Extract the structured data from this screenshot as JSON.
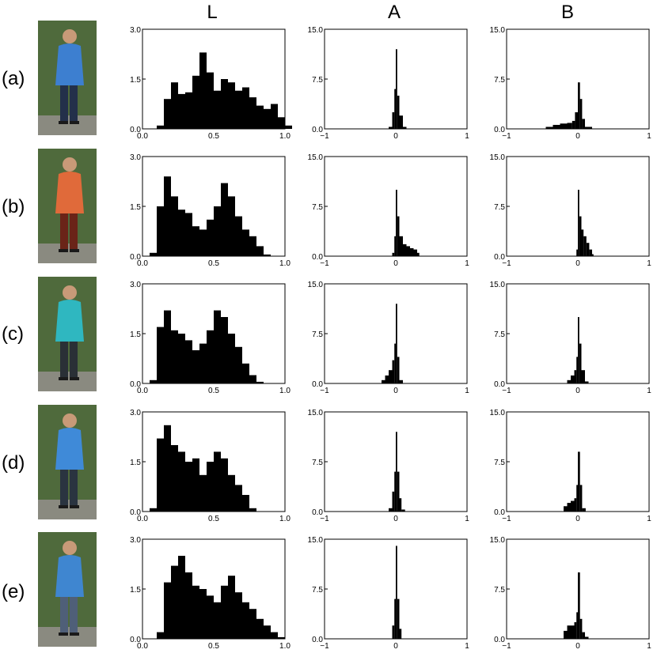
{
  "column_headers": [
    "L",
    "A",
    "B"
  ],
  "colors": {
    "bars": "#000000",
    "shirt_a": "#3d7fd0",
    "shirt_b": "#e06a3a",
    "shirt_c": "#2fb7c0",
    "shirt_d": "#3f8ad8",
    "shirt_e": "#3f86d0",
    "foliage": "#4f6a3c",
    "pants_a": "#23304a",
    "pants_b": "#6a2418",
    "pants_c": "#2a3036",
    "pants_d": "#2a3440",
    "pants_e": "#4f5f78"
  },
  "rows": [
    {
      "label": "(a)",
      "thumbnail_icon": "person-blue-shirt-icon"
    },
    {
      "label": "(b)",
      "thumbnail_icon": "person-orange-shirt-icon"
    },
    {
      "label": "(c)",
      "thumbnail_icon": "person-cyan-shirt-icon"
    },
    {
      "label": "(d)",
      "thumbnail_icon": "person-blue-shirt-icon"
    },
    {
      "label": "(e)",
      "thumbnail_icon": "person-blue-shirt-icon"
    }
  ],
  "chart_data": [
    {
      "type": "bar",
      "channel": "L",
      "row": "(a)",
      "xlim": [
        0,
        1
      ],
      "ylim": [
        0,
        3
      ],
      "xticks": [
        "0.0",
        "0.5",
        "1.0"
      ],
      "yticks": [
        "0.0",
        "1.5",
        "3.0"
      ],
      "x": [
        0.1,
        0.15,
        0.2,
        0.25,
        0.3,
        0.35,
        0.4,
        0.45,
        0.5,
        0.55,
        0.6,
        0.65,
        0.7,
        0.75,
        0.8,
        0.85,
        0.9,
        0.95,
        1.0
      ],
      "values": [
        0.1,
        0.9,
        1.4,
        1.05,
        1.1,
        1.6,
        2.3,
        1.7,
        1.15,
        1.5,
        1.4,
        1.15,
        1.25,
        0.95,
        0.7,
        0.6,
        0.75,
        0.35,
        0.1
      ]
    },
    {
      "type": "bar",
      "channel": "A",
      "row": "(a)",
      "xlim": [
        -1,
        1
      ],
      "ylim": [
        0,
        15
      ],
      "xticks": [
        "−1",
        "0",
        "1"
      ],
      "yticks": [
        "0.0",
        "7.5",
        "15.0"
      ],
      "x": [
        -0.1,
        -0.05,
        -0.02,
        0.0,
        0.02,
        0.05,
        0.1
      ],
      "values": [
        0.3,
        2.5,
        6,
        12,
        5,
        2,
        0.3
      ]
    },
    {
      "type": "bar",
      "channel": "B",
      "row": "(a)",
      "xlim": [
        -1,
        1
      ],
      "ylim": [
        0,
        15
      ],
      "xticks": [
        "−1",
        "0",
        "1"
      ],
      "yticks": [
        "0.0",
        "7.5",
        "15.0"
      ],
      "x": [
        -0.45,
        -0.35,
        -0.25,
        -0.15,
        -0.08,
        -0.04,
        0.0,
        0.03,
        0.06,
        0.1
      ],
      "values": [
        0.3,
        0.6,
        0.8,
        0.9,
        1.2,
        2.5,
        7,
        4.5,
        1.5,
        0.3
      ]
    },
    {
      "type": "bar",
      "channel": "L",
      "row": "(b)",
      "xlim": [
        0,
        1
      ],
      "ylim": [
        0,
        3
      ],
      "xticks": [
        "0.0",
        "0.5",
        "1.0"
      ],
      "yticks": [
        "0.0",
        "1.5",
        "3.0"
      ],
      "x": [
        0.05,
        0.1,
        0.15,
        0.2,
        0.25,
        0.3,
        0.35,
        0.4,
        0.45,
        0.5,
        0.55,
        0.6,
        0.65,
        0.7,
        0.75,
        0.8,
        0.85
      ],
      "values": [
        0.1,
        1.5,
        2.4,
        1.8,
        1.4,
        1.3,
        0.9,
        0.8,
        1.1,
        1.5,
        2.2,
        1.8,
        1.2,
        0.8,
        0.6,
        0.3,
        0.05
      ]
    },
    {
      "type": "bar",
      "channel": "A",
      "row": "(b)",
      "xlim": [
        -1,
        1
      ],
      "ylim": [
        0,
        15
      ],
      "xticks": [
        "−1",
        "0",
        "1"
      ],
      "yticks": [
        "0.0",
        "7.5",
        "15.0"
      ],
      "x": [
        -0.05,
        -0.02,
        0.0,
        0.02,
        0.05,
        0.1,
        0.15,
        0.2,
        0.25,
        0.3
      ],
      "values": [
        0.5,
        3,
        10,
        6,
        3,
        1.8,
        1.5,
        1.2,
        1,
        0.5
      ]
    },
    {
      "type": "bar",
      "channel": "B",
      "row": "(b)",
      "xlim": [
        -1,
        1
      ],
      "ylim": [
        0,
        15
      ],
      "xticks": [
        "−1",
        "0",
        "1"
      ],
      "yticks": [
        "0.0",
        "7.5",
        "15.0"
      ],
      "x": [
        -0.02,
        0.0,
        0.02,
        0.05,
        0.08,
        0.12,
        0.16,
        0.2
      ],
      "values": [
        1,
        10,
        6,
        4,
        3,
        2,
        1,
        0.3
      ]
    },
    {
      "type": "bar",
      "channel": "L",
      "row": "(c)",
      "xlim": [
        0,
        1
      ],
      "ylim": [
        0,
        3
      ],
      "xticks": [
        "0.0",
        "0.5",
        "1.0"
      ],
      "yticks": [
        "0.0",
        "1.5",
        "3.0"
      ],
      "x": [
        0.05,
        0.1,
        0.15,
        0.2,
        0.25,
        0.3,
        0.35,
        0.4,
        0.45,
        0.5,
        0.55,
        0.6,
        0.65,
        0.7,
        0.75,
        0.8
      ],
      "values": [
        0.1,
        1.7,
        2.2,
        1.6,
        1.5,
        1.3,
        1.0,
        1.2,
        1.6,
        2.2,
        2.0,
        1.5,
        1.1,
        0.6,
        0.25,
        0.05
      ]
    },
    {
      "type": "bar",
      "channel": "A",
      "row": "(c)",
      "xlim": [
        -1,
        1
      ],
      "ylim": [
        0,
        15
      ],
      "xticks": [
        "−1",
        "0",
        "1"
      ],
      "yticks": [
        "0.0",
        "7.5",
        "15.0"
      ],
      "x": [
        -0.2,
        -0.15,
        -0.1,
        -0.05,
        -0.02,
        0.0,
        0.02,
        0.05
      ],
      "values": [
        0.5,
        1.2,
        2.0,
        3.5,
        6,
        12,
        4,
        0.5
      ]
    },
    {
      "type": "bar",
      "channel": "B",
      "row": "(c)",
      "xlim": [
        -1,
        1
      ],
      "ylim": [
        0,
        15
      ],
      "xticks": [
        "−1",
        "0",
        "1"
      ],
      "yticks": [
        "0.0",
        "7.5",
        "15.0"
      ],
      "x": [
        -0.15,
        -0.1,
        -0.05,
        -0.02,
        0.0,
        0.02,
        0.05,
        0.1
      ],
      "values": [
        0.5,
        1.2,
        2,
        4,
        10,
        6,
        2,
        0.3
      ]
    },
    {
      "type": "bar",
      "channel": "L",
      "row": "(d)",
      "xlim": [
        0,
        1
      ],
      "ylim": [
        0,
        3
      ],
      "xticks": [
        "0.0",
        "0.5",
        "1.0"
      ],
      "yticks": [
        "0.0",
        "1.5",
        "3.0"
      ],
      "x": [
        0.05,
        0.1,
        0.15,
        0.2,
        0.25,
        0.3,
        0.35,
        0.4,
        0.45,
        0.5,
        0.55,
        0.6,
        0.65,
        0.7,
        0.75
      ],
      "values": [
        0.1,
        2.2,
        2.6,
        2.0,
        1.8,
        1.5,
        1.6,
        1.1,
        1.5,
        1.8,
        1.6,
        1.1,
        0.8,
        0.5,
        0.1
      ]
    },
    {
      "type": "bar",
      "channel": "A",
      "row": "(d)",
      "xlim": [
        -1,
        1
      ],
      "ylim": [
        0,
        15
      ],
      "xticks": [
        "−1",
        "0",
        "1"
      ],
      "yticks": [
        "0.0",
        "7.5",
        "15.0"
      ],
      "x": [
        -0.1,
        -0.05,
        -0.02,
        0.0,
        0.02,
        0.05,
        0.08
      ],
      "values": [
        0.5,
        3,
        6,
        12,
        6,
        2,
        0.3
      ]
    },
    {
      "type": "bar",
      "channel": "B",
      "row": "(d)",
      "xlim": [
        -1,
        1
      ],
      "ylim": [
        0,
        15
      ],
      "xticks": [
        "−1",
        "0",
        "1"
      ],
      "yticks": [
        "0.0",
        "7.5",
        "15.0"
      ],
      "x": [
        -0.2,
        -0.15,
        -0.1,
        -0.05,
        -0.02,
        0.0,
        0.03,
        0.06
      ],
      "values": [
        0.8,
        1.3,
        1.6,
        2,
        4,
        9,
        4,
        0.5
      ]
    },
    {
      "type": "bar",
      "channel": "L",
      "row": "(e)",
      "xlim": [
        0,
        1
      ],
      "ylim": [
        0,
        3
      ],
      "xticks": [
        "0.0",
        "0.5",
        "1.0"
      ],
      "yticks": [
        "0.0",
        "1.5",
        "3.0"
      ],
      "x": [
        0.1,
        0.15,
        0.2,
        0.25,
        0.3,
        0.35,
        0.4,
        0.45,
        0.5,
        0.55,
        0.6,
        0.65,
        0.7,
        0.75,
        0.8,
        0.85,
        0.9,
        0.95
      ],
      "values": [
        0.2,
        1.7,
        2.2,
        2.5,
        2.0,
        1.6,
        1.5,
        1.3,
        1.1,
        1.6,
        1.9,
        1.4,
        1.1,
        0.9,
        0.6,
        0.4,
        0.2,
        0.05
      ]
    },
    {
      "type": "bar",
      "channel": "A",
      "row": "(e)",
      "xlim": [
        -1,
        1
      ],
      "ylim": [
        0,
        15
      ],
      "xticks": [
        "−1",
        "0",
        "1"
      ],
      "yticks": [
        "0.0",
        "7.5",
        "15.0"
      ],
      "x": [
        -0.05,
        -0.02,
        0.0,
        0.02,
        0.05
      ],
      "values": [
        2,
        6,
        14,
        6,
        1.5
      ]
    },
    {
      "type": "bar",
      "channel": "B",
      "row": "(e)",
      "xlim": [
        -1,
        1
      ],
      "ylim": [
        0,
        15
      ],
      "xticks": [
        "−1",
        "0",
        "1"
      ],
      "yticks": [
        "0.0",
        "7.5",
        "15.0"
      ],
      "x": [
        -0.2,
        -0.15,
        -0.1,
        -0.05,
        -0.02,
        0.0,
        0.03,
        0.06,
        0.1
      ],
      "values": [
        1.2,
        2,
        2,
        2.5,
        4,
        10,
        3,
        1,
        0.3
      ]
    }
  ]
}
